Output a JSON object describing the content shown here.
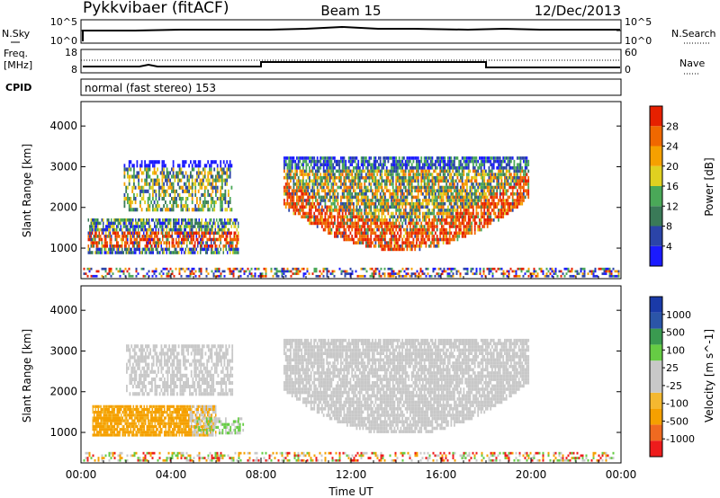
{
  "header": {
    "title": "Pykkvibaer (fitACF)",
    "beam": "Beam 15",
    "date": "12/Dec/2013"
  },
  "noise_panel": {
    "left_label": "N.Sky",
    "right_label": "N.Search",
    "left_ticks": [
      "10^5",
      "10^0"
    ],
    "right_ticks": [
      "10^5",
      "10^0"
    ]
  },
  "freq_panel": {
    "left_label_1": "Freq.",
    "left_label_2": "[MHz]",
    "right_label": "Nave",
    "left_ticks": [
      "18",
      "8"
    ],
    "right_ticks": [
      "60",
      "0"
    ]
  },
  "cpid_panel": {
    "label": "CPID",
    "text": "normal (fast stereo) 153"
  },
  "colors": {
    "power": [
      "#1a1aff",
      "#2b44a8",
      "#3a7a58",
      "#4aa858",
      "#e0d020",
      "#f5a000",
      "#f06800",
      "#e62000"
    ],
    "velocity": [
      "#ee1c1c",
      "#f06a20",
      "#f5a000",
      "#f4b830",
      "#c8c8c8",
      "#c8c8c8",
      "#66cc44",
      "#3a9a50",
      "#2b55a8",
      "#1a3aa8"
    ]
  },
  "chart_data": [
    {
      "type": "heatmap",
      "title": "Power",
      "ylabel": "Slant Range [km]",
      "xlim": [
        "00:00",
        "24:00"
      ],
      "ylim": [
        250,
        4600
      ],
      "yticks": [
        1000,
        2000,
        3000,
        4000
      ],
      "colorbar": {
        "label": "Power [dB]",
        "ticks": [
          4,
          8,
          12,
          16,
          20,
          24,
          28
        ],
        "range": [
          0,
          32
        ]
      },
      "echo_regions": [
        {
          "t_start": 0.8,
          "t_end": 7.0,
          "r_low": 900,
          "r_high": 1700,
          "level_db": 24
        },
        {
          "t_start": 1.8,
          "t_end": 6.6,
          "r_low": 1850,
          "r_high": 3100,
          "level_db": 12
        },
        {
          "t_start": 9.0,
          "t_end": 19.8,
          "r_low": 900,
          "r_high": 3200,
          "level_db": 20
        },
        {
          "t_start": 11.0,
          "t_end": 17.5,
          "r_low": 900,
          "r_high": 1800,
          "level_db": 28
        }
      ]
    },
    {
      "type": "heatmap",
      "title": "Velocity",
      "ylabel": "Slant Range [km]",
      "xlabel": "Time UT",
      "xticks": [
        "00:00",
        "04:00",
        "08:00",
        "12:00",
        "16:00",
        "20:00",
        "00:00"
      ],
      "ylim": [
        250,
        4600
      ],
      "yticks": [
        1000,
        2000,
        3000,
        4000
      ],
      "colorbar": {
        "label": "Velocity [m s^-1]",
        "ticks": [
          "1000",
          "500",
          "100",
          "25",
          "-25",
          "-100",
          "-500",
          "-1000"
        ]
      },
      "echo_regions": [
        {
          "t_start": 0.8,
          "t_end": 7.0,
          "r_low": 900,
          "r_high": 1700,
          "velocity": -100
        },
        {
          "t_start": 1.8,
          "t_end": 6.6,
          "r_low": 1850,
          "r_high": 3100,
          "velocity": 0
        },
        {
          "t_start": 9.0,
          "t_end": 19.8,
          "r_low": 900,
          "r_high": 3200,
          "velocity": 0
        }
      ]
    }
  ]
}
